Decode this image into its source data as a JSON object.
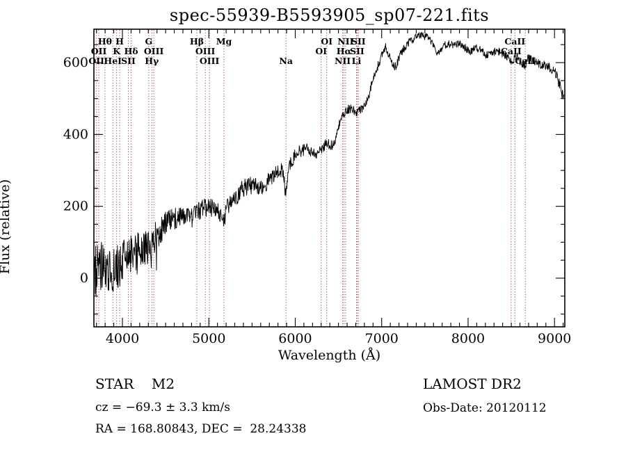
{
  "title": "spec-55939-B5593905_sp07-221.fits",
  "chart_data": {
    "type": "line",
    "title": "spec-55939-B5593905_sp07-221.fits",
    "xlabel": "Wavelength (Å)",
    "ylabel": "Flux (relative)",
    "xlim": [
      3670,
      9119
    ],
    "ylim": [
      -135.5,
      693
    ],
    "x_major_ticks": [
      4000,
      5000,
      6000,
      7000,
      8000,
      9000
    ],
    "x_minor_tick_step": 100,
    "y_major_ticks": [
      0,
      200,
      400,
      600
    ],
    "y_minor_tick_step": 50,
    "grid": false,
    "legend": false,
    "series": [
      {
        "name": "spectrum",
        "color": "#000000",
        "anchors": [
          [
            3670,
            5
          ],
          [
            3700,
            18
          ],
          [
            3760,
            22
          ],
          [
            3820,
            20
          ],
          [
            3880,
            18
          ],
          [
            3940,
            30
          ],
          [
            4000,
            45
          ],
          [
            4060,
            55
          ],
          [
            4120,
            70
          ],
          [
            4180,
            78
          ],
          [
            4240,
            86
          ],
          [
            4300,
            84
          ],
          [
            4360,
            105
          ],
          [
            4420,
            128
          ],
          [
            4480,
            145
          ],
          [
            4540,
            158
          ],
          [
            4600,
            168
          ],
          [
            4660,
            172
          ],
          [
            4720,
            172
          ],
          [
            4780,
            163
          ],
          [
            4840,
            175
          ],
          [
            4900,
            188
          ],
          [
            4960,
            196
          ],
          [
            5020,
            196
          ],
          [
            5080,
            192
          ],
          [
            5140,
            175
          ],
          [
            5175,
            160
          ],
          [
            5210,
            195
          ],
          [
            5270,
            218
          ],
          [
            5330,
            232
          ],
          [
            5390,
            248
          ],
          [
            5450,
            258
          ],
          [
            5510,
            258
          ],
          [
            5570,
            252
          ],
          [
            5630,
            255
          ],
          [
            5690,
            272
          ],
          [
            5750,
            288
          ],
          [
            5810,
            298
          ],
          [
            5860,
            300
          ],
          [
            5885,
            240
          ],
          [
            5893,
            228
          ],
          [
            5905,
            265
          ],
          [
            5930,
            312
          ],
          [
            5990,
            340
          ],
          [
            6050,
            352
          ],
          [
            6110,
            358
          ],
          [
            6170,
            357
          ],
          [
            6230,
            345
          ],
          [
            6290,
            358
          ],
          [
            6350,
            372
          ],
          [
            6410,
            372
          ],
          [
            6450,
            368
          ],
          [
            6490,
            415
          ],
          [
            6530,
            445
          ],
          [
            6570,
            458
          ],
          [
            6610,
            470
          ],
          [
            6650,
            472
          ],
          [
            6690,
            465
          ],
          [
            6730,
            462
          ],
          [
            6770,
            472
          ],
          [
            6810,
            485
          ],
          [
            6850,
            505
          ],
          [
            6890,
            545
          ],
          [
            6930,
            575
          ],
          [
            6970,
            600
          ],
          [
            7010,
            625
          ],
          [
            7050,
            645
          ],
          [
            7090,
            618
          ],
          [
            7130,
            588
          ],
          [
            7170,
            592
          ],
          [
            7210,
            620
          ],
          [
            7250,
            638
          ],
          [
            7290,
            648
          ],
          [
            7330,
            660
          ],
          [
            7370,
            668
          ],
          [
            7410,
            675
          ],
          [
            7450,
            678
          ],
          [
            7490,
            674
          ],
          [
            7530,
            670
          ],
          [
            7570,
            660
          ],
          [
            7610,
            645
          ],
          [
            7650,
            622
          ],
          [
            7690,
            638
          ],
          [
            7730,
            650
          ],
          [
            7770,
            655
          ],
          [
            7810,
            650
          ],
          [
            7850,
            648
          ],
          [
            7890,
            652
          ],
          [
            7930,
            650
          ],
          [
            7970,
            640
          ],
          [
            8010,
            630
          ],
          [
            8050,
            636
          ],
          [
            8090,
            640
          ],
          [
            8130,
            637
          ],
          [
            8170,
            633
          ],
          [
            8210,
            622
          ],
          [
            8250,
            618
          ],
          [
            8290,
            628
          ],
          [
            8330,
            632
          ],
          [
            8370,
            628
          ],
          [
            8410,
            624
          ],
          [
            8450,
            618
          ],
          [
            8490,
            608
          ],
          [
            8510,
            600
          ],
          [
            8530,
            612
          ],
          [
            8570,
            616
          ],
          [
            8610,
            600
          ],
          [
            8662,
            592
          ],
          [
            8690,
            612
          ],
          [
            8730,
            608
          ],
          [
            8770,
            604
          ],
          [
            8810,
            598
          ],
          [
            8850,
            594
          ],
          [
            8890,
            592
          ],
          [
            8930,
            590
          ],
          [
            8970,
            582
          ],
          [
            9010,
            570
          ],
          [
            9050,
            548
          ],
          [
            9080,
            525
          ],
          [
            9110,
            495
          ]
        ],
        "noise_envelope": [
          [
            3670,
            90
          ],
          [
            3800,
            78
          ],
          [
            3950,
            64
          ],
          [
            4100,
            55
          ],
          [
            4250,
            50
          ],
          [
            4400,
            42
          ],
          [
            4550,
            34
          ],
          [
            4700,
            30
          ],
          [
            4850,
            28
          ],
          [
            5000,
            26
          ],
          [
            5200,
            26
          ],
          [
            5400,
            26
          ],
          [
            5600,
            24
          ],
          [
            5800,
            22
          ],
          [
            6000,
            18
          ],
          [
            6200,
            17
          ],
          [
            6400,
            15
          ],
          [
            6600,
            13
          ],
          [
            6800,
            12
          ],
          [
            7000,
            14
          ],
          [
            7200,
            12
          ],
          [
            7400,
            11
          ],
          [
            7600,
            10
          ],
          [
            7800,
            11
          ],
          [
            8000,
            12
          ],
          [
            8200,
            12
          ],
          [
            8400,
            12
          ],
          [
            8600,
            12
          ],
          [
            8800,
            12
          ],
          [
            9000,
            14
          ],
          [
            9110,
            22
          ]
        ]
      }
    ],
    "spectral_lines": [
      {
        "label": "OII",
        "wavelength": 3700,
        "row": 3
      },
      {
        "label": "OII",
        "wavelength": 3727,
        "row": 2
      },
      {
        "label": "Hθ",
        "wavelength": 3798,
        "row": 1
      },
      {
        "label": "HeI",
        "wavelength": 3889,
        "row": 3
      },
      {
        "label": "K",
        "wavelength": 3933,
        "row": 2
      },
      {
        "label": "H",
        "wavelength": 3968,
        "row": 1
      },
      {
        "label": "SII",
        "wavelength": 4068,
        "row": 3
      },
      {
        "label": "Hδ",
        "wavelength": 4101,
        "row": 2
      },
      {
        "label": "G",
        "wavelength": 4305,
        "row": 1
      },
      {
        "label": "Hγ",
        "wavelength": 4340,
        "row": 3
      },
      {
        "label": "OIII",
        "wavelength": 4363,
        "row": 2
      },
      {
        "label": "Hβ",
        "wavelength": 4861,
        "row": 1
      },
      {
        "label": "OIII",
        "wavelength": 4959,
        "row": 2
      },
      {
        "label": "OIII",
        "wavelength": 5007,
        "row": 3
      },
      {
        "label": "Mg",
        "wavelength": 5175,
        "row": 1
      },
      {
        "label": "Na",
        "wavelength": 5893,
        "row": 3
      },
      {
        "label": "OI",
        "wavelength": 6300,
        "row": 2
      },
      {
        "label": "OI",
        "wavelength": 6364,
        "row": 1
      },
      {
        "label": "NII",
        "wavelength": 6548,
        "row": 3
      },
      {
        "label": "Hα",
        "wavelength": 6563,
        "row": 2
      },
      {
        "label": "NII",
        "wavelength": 6583,
        "row": 1
      },
      {
        "label": "Li",
        "wavelength": 6708,
        "row": 3
      },
      {
        "label": "SII",
        "wavelength": 6716,
        "row": 2
      },
      {
        "label": "SII",
        "wavelength": 6731,
        "row": 1
      },
      {
        "label": "CaII",
        "wavelength": 8498,
        "row": 2
      },
      {
        "label": "CaII",
        "wavelength": 8542,
        "row": 1
      },
      {
        "label": "CaII",
        "wavelength": 8662,
        "row": 3
      }
    ]
  },
  "annotations": {
    "classification": "STAR    M2",
    "cz": "cz = −69.3 ± 3.3 km/s",
    "coords": "RA = 168.80843, DEC =  28.24338",
    "survey": "LAMOST DR2",
    "obs_date": "Obs-Date: 20120112"
  },
  "colors": {
    "spectrum": "#000000",
    "line_marker": "#a04040",
    "axis": "#000000",
    "text": "#000000",
    "background": "#ffffff"
  }
}
